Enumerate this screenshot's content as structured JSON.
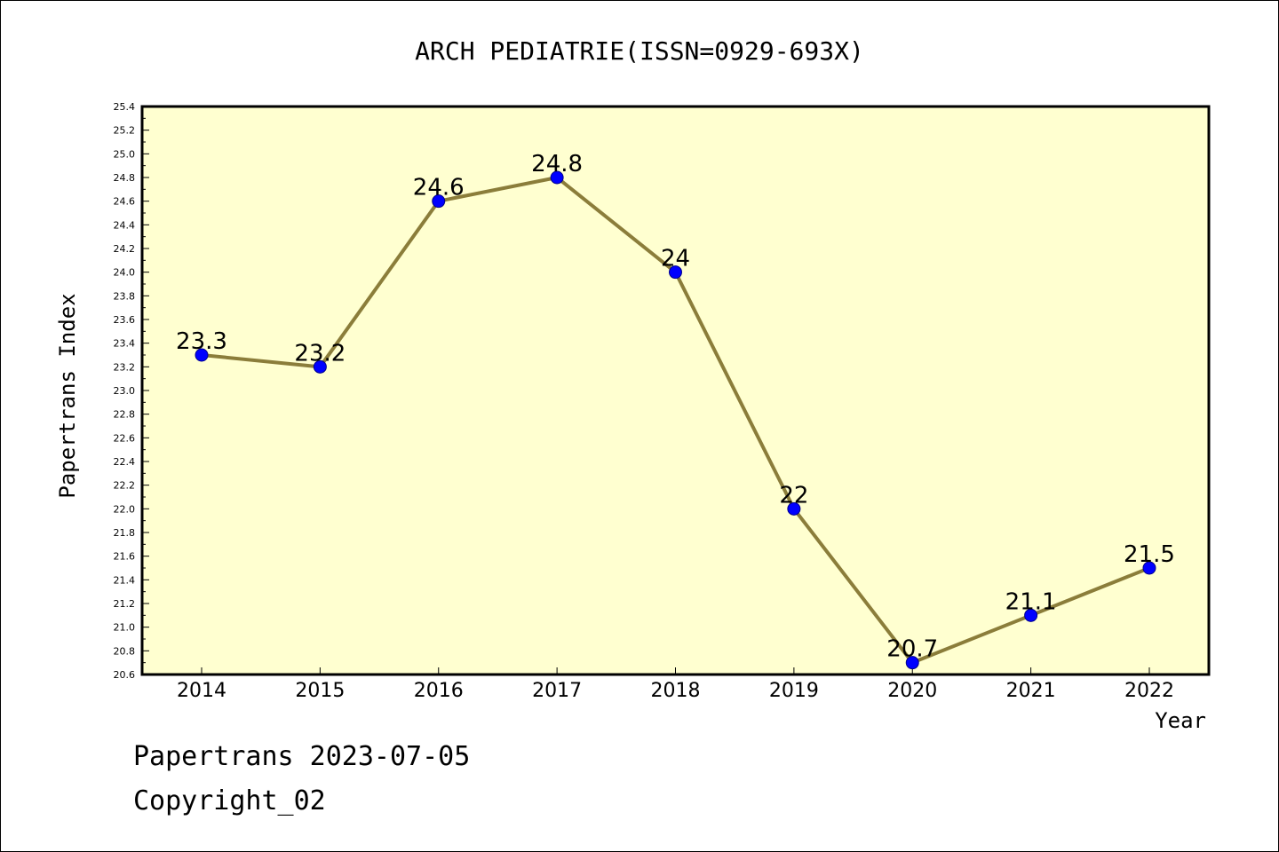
{
  "chart_data": {
    "type": "line",
    "title": "ARCH PEDIATRIE(ISSN=0929-693X)",
    "xlabel": "Year",
    "ylabel": "Papertrans Index",
    "categories": [
      "2014",
      "2015",
      "2016",
      "2017",
      "2018",
      "2019",
      "2020",
      "2021",
      "2022"
    ],
    "values": [
      23.3,
      23.2,
      24.6,
      24.8,
      24.0,
      22.0,
      20.7,
      21.1,
      21.5
    ],
    "data_labels": [
      "23.3",
      "23.2",
      "24.6",
      "24.8",
      "24",
      "22",
      "20.7",
      "21.1",
      "21.5"
    ],
    "ylim": [
      20.6,
      25.4
    ],
    "yticks": [
      "20.6",
      "20.8",
      "21.0",
      "21.2",
      "21.4",
      "21.6",
      "21.8",
      "22.0",
      "22.2",
      "22.4",
      "22.6",
      "22.8",
      "23.0",
      "23.2",
      "23.4",
      "23.6",
      "23.8",
      "24.0",
      "24.2",
      "24.4",
      "24.6",
      "24.8",
      "25.0",
      "25.2",
      "25.4"
    ],
    "grid": false,
    "colors": {
      "plot_background": "#ffffd0",
      "line": "#8b7d3a",
      "marker": "#0000ff"
    }
  },
  "footer": {
    "line1": "Papertrans 2023-07-05",
    "line2": "Copyright_02"
  }
}
